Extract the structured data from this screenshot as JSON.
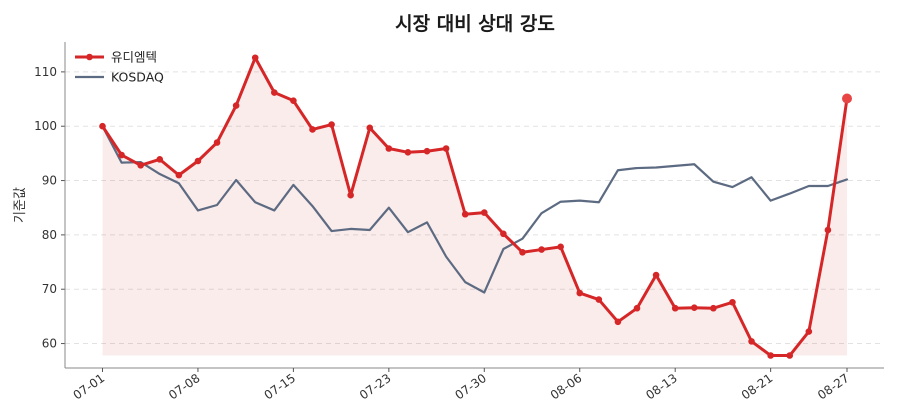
{
  "chart_data": {
    "type": "line",
    "title": "시장 대비 상대 강도",
    "xlabel": "",
    "ylabel": "기준값",
    "ylim": [
      55.5,
      115.5
    ],
    "yticks": [
      60,
      70,
      80,
      90,
      100,
      110
    ],
    "grid": true,
    "legend": "top-left",
    "x_tick_labels": [
      "07-01",
      "07-08",
      "07-15",
      "07-23",
      "07-30",
      "08-06",
      "08-13",
      "08-21",
      "08-27"
    ],
    "x_tick_index": [
      0,
      5,
      10,
      15,
      20,
      25,
      30,
      35,
      39
    ],
    "series": [
      {
        "name": "유디엠텍",
        "color": "#d62728",
        "values": [
          100.0,
          94.7,
          92.8,
          93.9,
          91.0,
          93.6,
          97.0,
          103.8,
          112.6,
          106.2,
          104.7,
          99.4,
          100.3,
          87.3,
          99.7,
          95.9,
          95.2,
          95.4,
          95.9,
          83.8,
          84.1,
          80.2,
          76.8,
          77.3,
          77.8,
          69.3,
          68.1,
          64.0,
          66.5,
          72.6,
          66.5,
          66.6,
          66.5,
          67.6,
          60.4,
          57.8,
          57.8,
          62.2,
          80.9,
          105.1
        ]
      },
      {
        "name": "KOSDAQ",
        "color": "#5d6b82",
        "values": [
          100.0,
          93.3,
          93.4,
          91.2,
          89.5,
          84.5,
          85.5,
          90.1,
          86.0,
          84.5,
          89.2,
          85.3,
          80.7,
          81.1,
          80.9,
          85.0,
          80.5,
          82.3,
          76.0,
          71.3,
          69.4,
          77.4,
          79.3,
          84.0,
          86.1,
          86.3,
          86.0,
          91.9,
          92.3,
          92.4,
          92.7,
          93.0,
          89.8,
          88.8,
          90.6,
          86.3,
          87.6,
          89.0,
          89.0,
          90.2
        ]
      }
    ]
  }
}
